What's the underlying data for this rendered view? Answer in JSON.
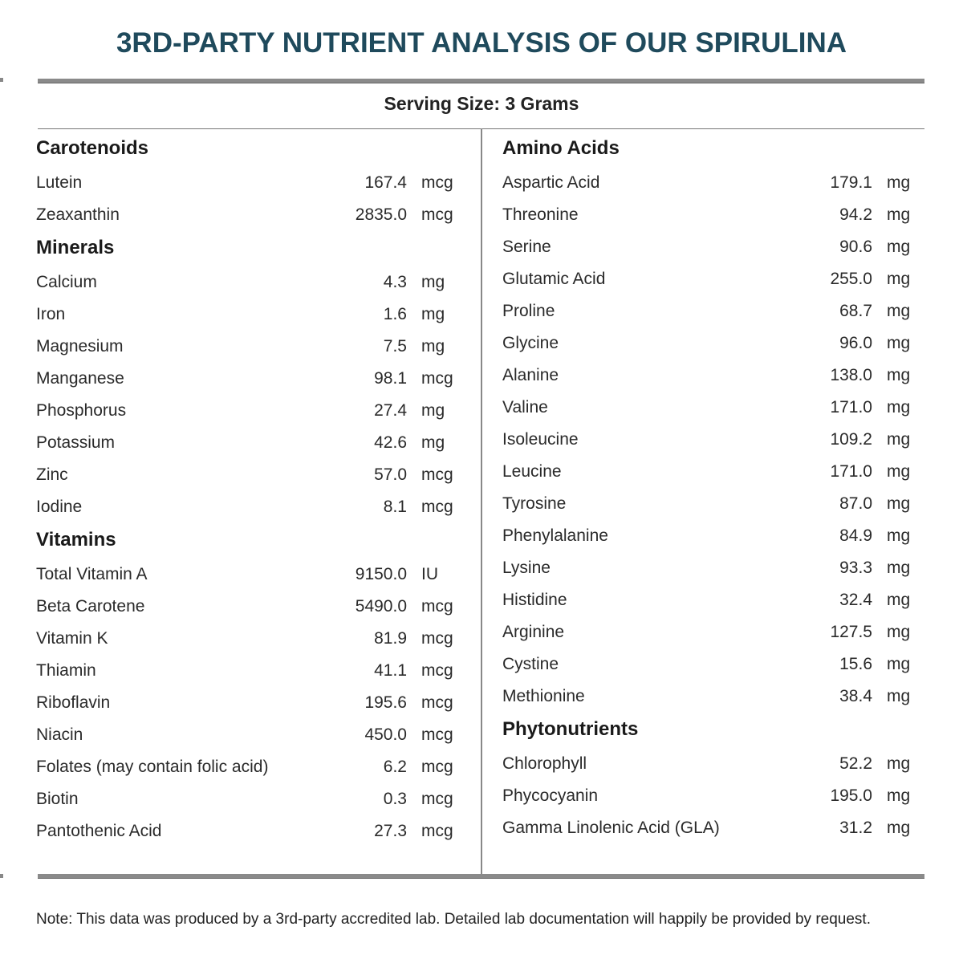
{
  "title": "3RD-PARTY NUTRIENT ANALYSIS OF OUR SPIRULINA",
  "serving_size": "Serving Size: 3 Grams",
  "left_sections": [
    {
      "heading": "Carotenoids",
      "items": [
        {
          "name": "Lutein",
          "value": "167.4",
          "unit": "mcg"
        },
        {
          "name": "Zeaxanthin",
          "value": "2835.0",
          "unit": "mcg"
        }
      ]
    },
    {
      "heading": "Minerals",
      "items": [
        {
          "name": "Calcium",
          "value": "4.3",
          "unit": "mg"
        },
        {
          "name": "Iron",
          "value": "1.6",
          "unit": "mg"
        },
        {
          "name": "Magnesium",
          "value": "7.5",
          "unit": "mg"
        },
        {
          "name": "Manganese",
          "value": "98.1",
          "unit": "mcg"
        },
        {
          "name": "Phosphorus",
          "value": "27.4",
          "unit": "mg"
        },
        {
          "name": "Potassium",
          "value": "42.6",
          "unit": "mg"
        },
        {
          "name": "Zinc",
          "value": "57.0",
          "unit": "mcg"
        },
        {
          "name": "Iodine",
          "value": "8.1",
          "unit": "mcg"
        }
      ]
    },
    {
      "heading": "Vitamins",
      "items": [
        {
          "name": "Total Vitamin A",
          "value": "9150.0",
          "unit": "IU"
        },
        {
          "name": "Beta Carotene",
          "value": "5490.0",
          "unit": "mcg"
        },
        {
          "name": "Vitamin K",
          "value": "81.9",
          "unit": "mcg"
        },
        {
          "name": "Thiamin",
          "value": "41.1",
          "unit": "mcg"
        },
        {
          "name": "Riboflavin",
          "value": "195.6",
          "unit": "mcg"
        },
        {
          "name": "Niacin",
          "value": "450.0",
          "unit": "mcg"
        },
        {
          "name": "Folates (may contain folic acid)",
          "value": "6.2",
          "unit": "mcg"
        },
        {
          "name": "Biotin",
          "value": "0.3",
          "unit": "mcg"
        },
        {
          "name": "Pantothenic Acid",
          "value": "27.3",
          "unit": "mcg"
        }
      ]
    }
  ],
  "right_sections": [
    {
      "heading": "Amino Acids",
      "items": [
        {
          "name": "Aspartic Acid",
          "value": "179.1",
          "unit": "mg"
        },
        {
          "name": "Threonine",
          "value": "94.2",
          "unit": "mg"
        },
        {
          "name": "Serine",
          "value": "90.6",
          "unit": "mg"
        },
        {
          "name": "Glutamic Acid",
          "value": "255.0",
          "unit": "mg"
        },
        {
          "name": "Proline",
          "value": "68.7",
          "unit": "mg"
        },
        {
          "name": "Glycine",
          "value": "96.0",
          "unit": "mg"
        },
        {
          "name": "Alanine",
          "value": "138.0",
          "unit": "mg"
        },
        {
          "name": "Valine",
          "value": "171.0",
          "unit": "mg"
        },
        {
          "name": "Isoleucine",
          "value": "109.2",
          "unit": "mg"
        },
        {
          "name": "Leucine",
          "value": "171.0",
          "unit": "mg"
        },
        {
          "name": "Tyrosine",
          "value": "87.0",
          "unit": "mg"
        },
        {
          "name": "Phenylalanine",
          "value": "84.9",
          "unit": "mg"
        },
        {
          "name": "Lysine",
          "value": "93.3",
          "unit": "mg"
        },
        {
          "name": "Histidine",
          "value": "32.4",
          "unit": "mg"
        },
        {
          "name": "Arginine",
          "value": "127.5",
          "unit": "mg"
        },
        {
          "name": "Cystine",
          "value": "15.6",
          "unit": "mg"
        },
        {
          "name": "Methionine",
          "value": "38.4",
          "unit": "mg"
        }
      ]
    },
    {
      "heading": "Phytonutrients",
      "items": [
        {
          "name": "Chlorophyll",
          "value": "52.2",
          "unit": "mg"
        },
        {
          "name": "Phycocyanin",
          "value": "195.0",
          "unit": "mg"
        },
        {
          "name": "Gamma Linolenic Acid (GLA)",
          "value": "31.2",
          "unit": "mg"
        }
      ]
    }
  ],
  "note": "Note: This data was produced by a 3rd-party accredited lab. Detailed lab documentation will happily be provided by request."
}
